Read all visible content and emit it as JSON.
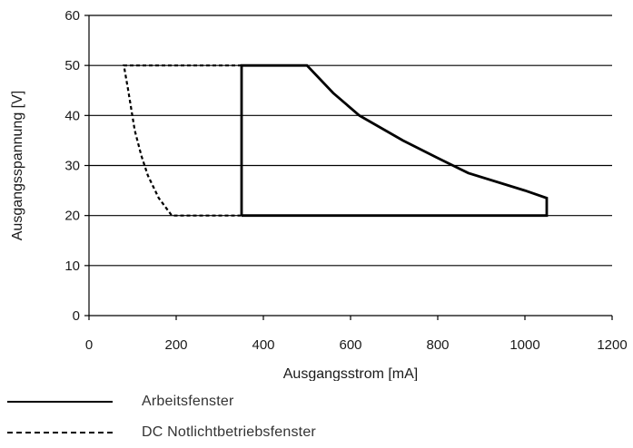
{
  "chart_data": {
    "type": "line",
    "title": "",
    "xlabel": "Ausgangsstrom [mA]",
    "ylabel": "Ausgangsspannung [V]",
    "xlim": [
      0,
      1200
    ],
    "ylim": [
      0,
      60
    ],
    "xticks": [
      0,
      200,
      400,
      600,
      800,
      1000,
      1200
    ],
    "yticks": [
      0,
      10,
      20,
      30,
      40,
      50,
      60
    ],
    "grid": "horizontal",
    "legend_position": "bottom-left",
    "series": [
      {
        "name": "Arbeitsfenster",
        "style": "solid",
        "color": "#000000",
        "points": [
          [
            350,
            20
          ],
          [
            350,
            50
          ],
          [
            500,
            50
          ],
          [
            560,
            44.5
          ],
          [
            620,
            40
          ],
          [
            720,
            35
          ],
          [
            800,
            31.5
          ],
          [
            870,
            28.5
          ],
          [
            1000,
            25
          ],
          [
            1050,
            23.5
          ],
          [
            1050,
            20
          ],
          [
            350,
            20
          ]
        ]
      },
      {
        "name": "DC Notlichtbetriebsfenster",
        "style": "dashed",
        "color": "#000000",
        "points": [
          [
            350,
            50
          ],
          [
            80,
            50
          ],
          [
            90,
            45
          ],
          [
            105,
            37
          ],
          [
            120,
            32
          ],
          [
            135,
            28
          ],
          [
            160,
            23.5
          ],
          [
            190,
            20
          ],
          [
            350,
            20
          ]
        ]
      }
    ]
  }
}
